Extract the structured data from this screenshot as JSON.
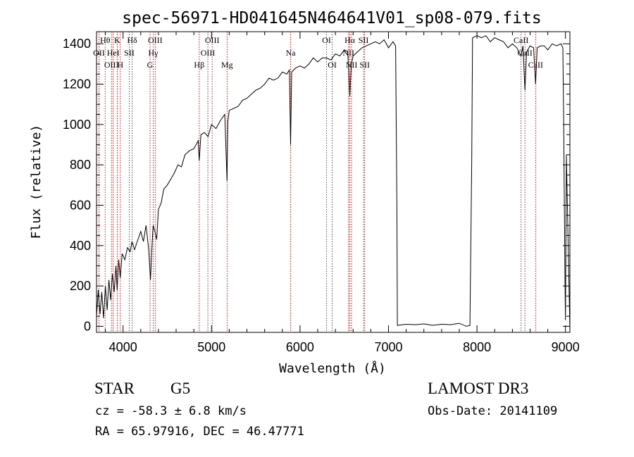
{
  "chart_data": {
    "type": "line",
    "title": "spec-56971-HD041645N464641V01_sp08-079.fits",
    "xlabel": "Wavelength (Å)",
    "ylabel": "Flux (relative)",
    "xlim": [
      3700,
      9050
    ],
    "ylim": [
      -30,
      1460
    ],
    "xticks": [
      4000,
      5000,
      6000,
      7000,
      8000,
      9000
    ],
    "yticks": [
      0,
      200,
      400,
      600,
      800,
      1000,
      1200,
      1400
    ],
    "grid": false,
    "series": [
      {
        "name": "spectrum",
        "x": [
          3700,
          3720,
          3740,
          3760,
          3780,
          3800,
          3820,
          3840,
          3860,
          3880,
          3900,
          3920,
          3933,
          3950,
          3968,
          3990,
          4020,
          4050,
          4080,
          4101,
          4130,
          4160,
          4200,
          4230,
          4260,
          4290,
          4310,
          4330,
          4340,
          4360,
          4380,
          4400,
          4430,
          4460,
          4500,
          4540,
          4580,
          4620,
          4660,
          4700,
          4750,
          4800,
          4850,
          4861,
          4880,
          4920,
          4960,
          5000,
          5050,
          5100,
          5150,
          5175,
          5183,
          5200,
          5250,
          5300,
          5350,
          5400,
          5450,
          5500,
          5550,
          5600,
          5650,
          5700,
          5750,
          5800,
          5850,
          5880,
          5893,
          5905,
          5950,
          6000,
          6050,
          6100,
          6150,
          6200,
          6250,
          6300,
          6350,
          6400,
          6450,
          6500,
          6540,
          6563,
          6580,
          6600,
          6650,
          6700,
          6750,
          6800,
          6850,
          6900,
          6950,
          7000,
          7050,
          7080,
          7095,
          7100,
          7200,
          7300,
          7400,
          7500,
          7600,
          7700,
          7800,
          7880,
          7920,
          7940,
          7950,
          8000,
          8050,
          8100,
          8150,
          8200,
          8250,
          8300,
          8350,
          8400,
          8450,
          8498,
          8520,
          8542,
          8560,
          8600,
          8640,
          8662,
          8680,
          8720,
          8760,
          8800,
          8850,
          8900,
          8950,
          8970,
          8980,
          8995,
          9000,
          9010,
          9050
        ],
        "values": [
          50,
          180,
          60,
          170,
          40,
          200,
          80,
          230,
          130,
          260,
          170,
          300,
          180,
          330,
          240,
          360,
          330,
          390,
          370,
          420,
          380,
          420,
          470,
          420,
          500,
          380,
          230,
          420,
          500,
          470,
          430,
          580,
          610,
          680,
          700,
          730,
          760,
          800,
          790,
          850,
          870,
          880,
          920,
          820,
          950,
          960,
          940,
          1000,
          980,
          1020,
          1050,
          720,
          1010,
          1070,
          1080,
          1090,
          1120,
          1130,
          1150,
          1170,
          1180,
          1200,
          1230,
          1220,
          1230,
          1260,
          1250,
          1270,
          900,
          1260,
          1280,
          1290,
          1280,
          1300,
          1330,
          1310,
          1330,
          1330,
          1320,
          1350,
          1340,
          1370,
          1360,
          1140,
          1300,
          1340,
          1360,
          1380,
          1390,
          1400,
          1410,
          1400,
          1420,
          1380,
          1410,
          1390,
          600,
          5,
          10,
          8,
          12,
          5,
          10,
          8,
          15,
          0,
          5,
          800,
          1430,
          1440,
          1430,
          1440,
          1410,
          1430,
          1420,
          1410,
          1380,
          1400,
          1380,
          1340,
          1390,
          1170,
          1360,
          1390,
          1380,
          1200,
          1380,
          1390,
          1390,
          1370,
          1400,
          1390,
          1400,
          1380,
          1000,
          200,
          30,
          850,
          -20
        ]
      }
    ],
    "line_markers": [
      {
        "label": "OII",
        "x": 3727,
        "row": 1
      },
      {
        "label": "Hθ",
        "x": 3798,
        "row": 0
      },
      {
        "label": "OIII",
        "x": 3869,
        "row": 2
      },
      {
        "label": "K",
        "x": 3934,
        "row": 0
      },
      {
        "label": "HeI",
        "x": 3889,
        "row": 1
      },
      {
        "label": "H",
        "x": 3969,
        "row": 2
      },
      {
        "label": "SII",
        "x": 4070,
        "row": 1
      },
      {
        "label": "Hδ",
        "x": 4102,
        "row": 0
      },
      {
        "label": "Hγ",
        "x": 4341,
        "row": 1
      },
      {
        "label": "OIII",
        "x": 4363,
        "row": 0
      },
      {
        "label": "G",
        "x": 4305,
        "row": 2
      },
      {
        "label": "Hβ",
        "x": 4861,
        "row": 2
      },
      {
        "label": "OIII",
        "x": 4959,
        "row": 1
      },
      {
        "label": "OIII",
        "x": 5007,
        "row": 0
      },
      {
        "label": "Mg",
        "x": 5175,
        "row": 2
      },
      {
        "label": "Na",
        "x": 5894,
        "row": 1
      },
      {
        "label": "OI",
        "x": 6300,
        "row": 0
      },
      {
        "label": "OI",
        "x": 6364,
        "row": 2
      },
      {
        "label": "NII",
        "x": 6548,
        "row": 1
      },
      {
        "label": "Hα",
        "x": 6563,
        "row": 0
      },
      {
        "label": "NII",
        "x": 6583,
        "row": 2
      },
      {
        "label": "SII",
        "x": 6717,
        "row": 0
      },
      {
        "label": "SII",
        "x": 6731,
        "row": 2
      },
      {
        "label": "CaII",
        "x": 8498,
        "row": 0
      },
      {
        "label": "CaII",
        "x": 8542,
        "row": 1
      },
      {
        "label": "CaII",
        "x": 8662,
        "row": 2
      }
    ]
  },
  "info": {
    "object_type": "STAR",
    "subclass": "G5",
    "survey": "LAMOST DR3",
    "cz": "cz = -58.3 ± 6.8 km/s",
    "obs_date": "Obs-Date: 20141109",
    "coords": "RA =  65.97916, DEC =  46.47771"
  }
}
